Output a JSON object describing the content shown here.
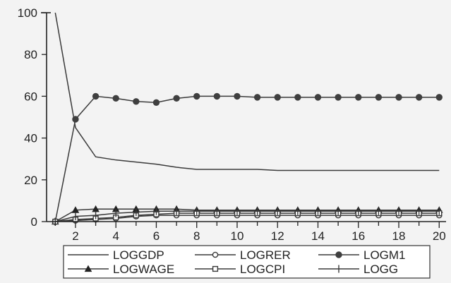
{
  "colors": {
    "background": "#f3f3f3",
    "line": "#3a3a3a",
    "axis": "#222222"
  },
  "chart_data": {
    "type": "line",
    "title": "",
    "xlabel": "",
    "ylabel": "",
    "x": [
      1,
      2,
      3,
      4,
      5,
      6,
      7,
      8,
      9,
      10,
      11,
      12,
      13,
      14,
      15,
      16,
      17,
      18,
      19,
      20
    ],
    "xlim": [
      0.5,
      20.2
    ],
    "ylim": [
      0,
      100
    ],
    "x_ticks": [
      2,
      4,
      6,
      8,
      10,
      12,
      14,
      16,
      18,
      20
    ],
    "x_tick_labels": [
      "2",
      "4",
      "6",
      "8",
      "10",
      "12",
      "14",
      "16",
      "18",
      "20"
    ],
    "y_ticks": [
      0,
      20,
      40,
      60,
      80,
      100
    ],
    "y_tick_labels": [
      "0",
      "20",
      "40",
      "60",
      "80",
      "100"
    ],
    "grid": false,
    "legend_position": "bottom",
    "series": [
      {
        "name": "LOGGDP",
        "marker": "none",
        "values": [
          100,
          45,
          31,
          29.5,
          28.5,
          27.5,
          26,
          25,
          25,
          25,
          25,
          24.5,
          24.5,
          24.5,
          24.5,
          24.5,
          24.5,
          24.5,
          24.5,
          24.5
        ]
      },
      {
        "name": "LOGRER",
        "marker": "open-circle",
        "values": [
          0,
          0.5,
          1,
          1.5,
          2.5,
          3,
          3,
          3,
          3,
          3,
          3,
          3,
          3,
          3,
          3,
          3,
          3,
          3,
          3,
          3
        ]
      },
      {
        "name": "LOGM1",
        "marker": "filled-circle",
        "values": [
          0,
          49,
          60,
          59,
          57.5,
          57,
          59,
          60,
          60,
          60,
          59.5,
          59.5,
          59.5,
          59.5,
          59.5,
          59.5,
          59.5,
          59.5,
          59.5,
          59.5
        ]
      },
      {
        "name": "LOGWAGE",
        "marker": "filled-triangle",
        "values": [
          0,
          5.5,
          6,
          6,
          6,
          6,
          6,
          5.5,
          5.5,
          5.5,
          5.5,
          5.5,
          5.5,
          5.5,
          5.5,
          5.5,
          5.5,
          5.5,
          5.5,
          5.5
        ]
      },
      {
        "name": "LOGCPI",
        "marker": "open-square",
        "values": [
          0,
          1,
          1.5,
          2,
          3,
          3.5,
          4,
          4,
          4,
          4,
          4,
          4,
          4,
          4,
          4,
          4,
          4,
          4,
          4,
          4
        ]
      },
      {
        "name": "LOGG",
        "marker": "plus",
        "values": [
          0,
          2.5,
          3,
          4,
          4.5,
          5,
          5,
          5,
          5,
          5,
          5,
          5,
          5,
          5,
          5,
          5,
          5,
          5,
          5,
          5
        ]
      }
    ]
  }
}
